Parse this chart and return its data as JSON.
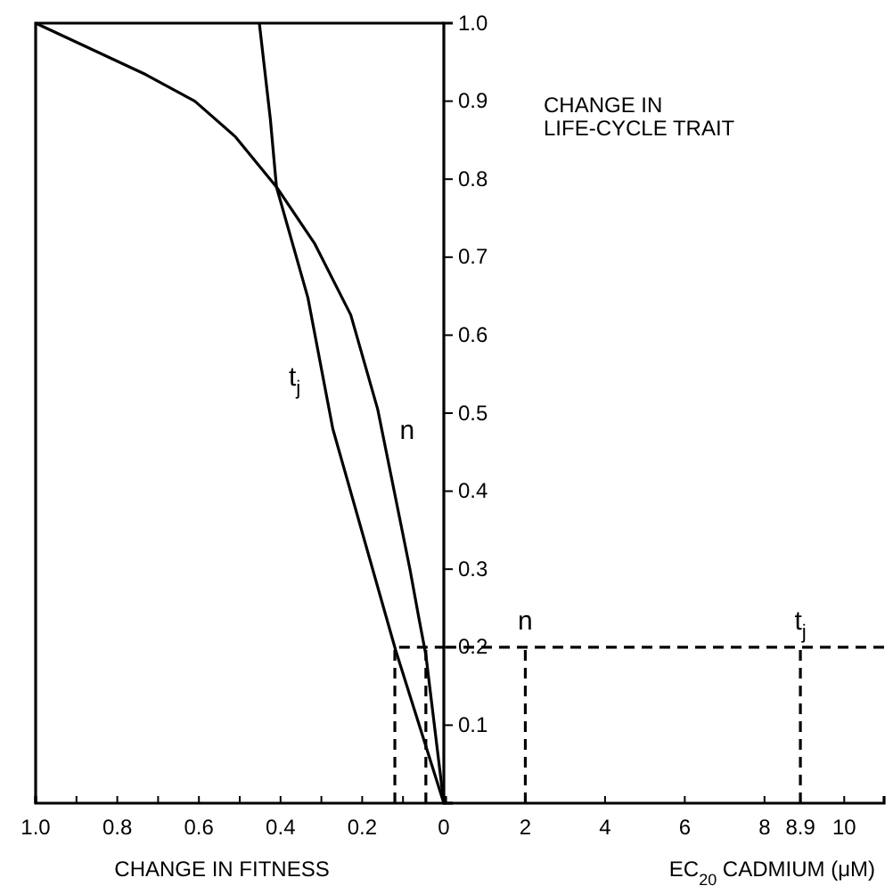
{
  "chart_data": [
    {
      "type": "line",
      "xlabel": "CHANGE IN FITNESS",
      "ylabel": "CHANGE IN LIFE-CYCLE TRAIT",
      "xlim": [
        1,
        0
      ],
      "ylim": [
        0,
        1
      ],
      "xticks": [
        {
          "value": 1,
          "label": "1.0"
        },
        {
          "value": 0.9,
          "label": null
        },
        {
          "value": 0.8,
          "label": "0.8"
        },
        {
          "value": 0.7,
          "label": null
        },
        {
          "value": 0.6,
          "label": "0.6"
        },
        {
          "value": 0.5,
          "label": null
        },
        {
          "value": 0.4,
          "label": "0.4"
        },
        {
          "value": 0.3,
          "label": null
        },
        {
          "value": 0.2,
          "label": "0.2"
        },
        {
          "value": 0.1,
          "label": null
        },
        0
      ],
      "yticks": [
        0.1,
        0.2,
        0.3,
        0.4,
        0.5,
        0.6,
        0.7,
        0.8,
        0.9,
        {
          "value": 1,
          "label": "1.0"
        }
      ],
      "series": [
        {
          "name": "n",
          "color": "#000000",
          "line_style": "solid",
          "x": [
            1,
            0.73,
            0.61,
            0.51,
            0.41,
            0.316,
            0.228,
            0.162,
            0.083,
            0.061,
            0.044,
            0
          ],
          "values": [
            1,
            0.934,
            0.9,
            0.854,
            0.79,
            0.717,
            0.626,
            0.505,
            0.3,
            0.237,
            0.19,
            0
          ]
        },
        {
          "name": "t$_{j}$",
          "color": "#000000",
          "line_style": "solid",
          "x": [
            0.452,
            0.425,
            0.41,
            0.333,
            0.272,
            0.118,
            0
          ],
          "values": [
            1,
            0.877,
            0.79,
            0.648,
            0.48,
            0.196,
            0
          ]
        },
        {
          "color": "#000000",
          "line_style": "dashed",
          "x": [
            0.12,
            0.12,
            0
          ],
          "values": [
            0,
            0.2,
            0.2
          ]
        },
        {
          "color": "#000000",
          "line_style": "dashed",
          "x": [
            0.044,
            0.044
          ],
          "values": [
            0,
            0.2
          ]
        }
      ]
    },
    {
      "type": "line",
      "xlabel": "EC$_{20}$ CADMIUM (μM)",
      "xlim": [
        0,
        11
      ],
      "ylim": [
        0,
        1
      ],
      "tick_labels": "x",
      "xticks": [
        2,
        4,
        6,
        8,
        8.9,
        10
      ],
      "series": [
        {
          "color": "#000000",
          "line_style": "dashed",
          "x": [
            0,
            11
          ],
          "values": [
            0.2,
            0.2
          ]
        },
        {
          "name": "n",
          "color": "#000000",
          "line_style": "dashed",
          "x": [
            2,
            2
          ],
          "values": [
            0,
            0.2
          ]
        },
        {
          "name": "t$_{j}$",
          "color": "#000000",
          "line_style": "dashed",
          "x": [
            8.9,
            8.9
          ],
          "values": [
            0,
            0.2
          ]
        }
      ]
    }
  ]
}
